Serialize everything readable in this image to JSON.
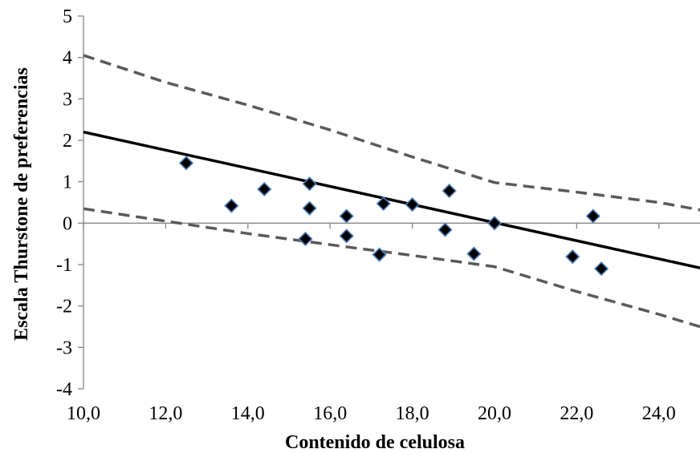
{
  "chart_data": {
    "type": "scatter",
    "title": "",
    "xlabel": "Contenido de celulosa",
    "ylabel": "Escala Thurstone de preferencias",
    "xlim": [
      10,
      25
    ],
    "ylim": [
      -4,
      5
    ],
    "x_ticks": [
      10,
      12,
      14,
      16,
      18,
      20,
      22,
      24
    ],
    "x_tick_labels": [
      "10,0",
      "12,0",
      "14,0",
      "16,0",
      "18,0",
      "20,0",
      "22,0",
      "24,0"
    ],
    "y_ticks": [
      -4,
      -3,
      -2,
      -1,
      0,
      1,
      2,
      3,
      4,
      5
    ],
    "y_tick_labels": [
      "-4",
      "-3",
      "-2",
      "-1",
      "0",
      "1",
      "2",
      "3",
      "4",
      "5"
    ],
    "grid": false,
    "legend": "none",
    "points": [
      {
        "x": 12.5,
        "y": 1.45
      },
      {
        "x": 13.6,
        "y": 0.42
      },
      {
        "x": 14.4,
        "y": 0.82
      },
      {
        "x": 15.4,
        "y": -0.38
      },
      {
        "x": 15.5,
        "y": 0.95
      },
      {
        "x": 15.5,
        "y": 0.36
      },
      {
        "x": 16.4,
        "y": 0.17
      },
      {
        "x": 16.4,
        "y": -0.31
      },
      {
        "x": 17.2,
        "y": -0.76
      },
      {
        "x": 17.3,
        "y": 0.47
      },
      {
        "x": 18.0,
        "y": 0.45
      },
      {
        "x": 18.8,
        "y": -0.16
      },
      {
        "x": 18.9,
        "y": 0.78
      },
      {
        "x": 19.5,
        "y": -0.74
      },
      {
        "x": 20.0,
        "y": 0.0
      },
      {
        "x": 21.9,
        "y": -0.81
      },
      {
        "x": 22.4,
        "y": 0.17
      },
      {
        "x": 22.6,
        "y": -1.1
      }
    ],
    "regression_line": {
      "x": [
        10,
        25
      ],
      "y": [
        2.2,
        -1.08
      ]
    },
    "upper_band": {
      "x": [
        10,
        12,
        14,
        16,
        18,
        20,
        22,
        24,
        25
      ],
      "y": [
        4.05,
        3.4,
        2.85,
        2.25,
        1.6,
        0.98,
        0.75,
        0.5,
        0.32
      ]
    },
    "lower_band": {
      "x": [
        10,
        12,
        14,
        16,
        18,
        20,
        22,
        24,
        25
      ],
      "y": [
        0.35,
        0.05,
        -0.25,
        -0.52,
        -0.78,
        -1.05,
        -1.65,
        -2.2,
        -2.5
      ]
    },
    "colors": {
      "marker_fill": "#000000",
      "marker_stroke": "#4f81bd",
      "regression": "#000000",
      "band": "#5a5a5a",
      "axis": "#868686"
    }
  }
}
